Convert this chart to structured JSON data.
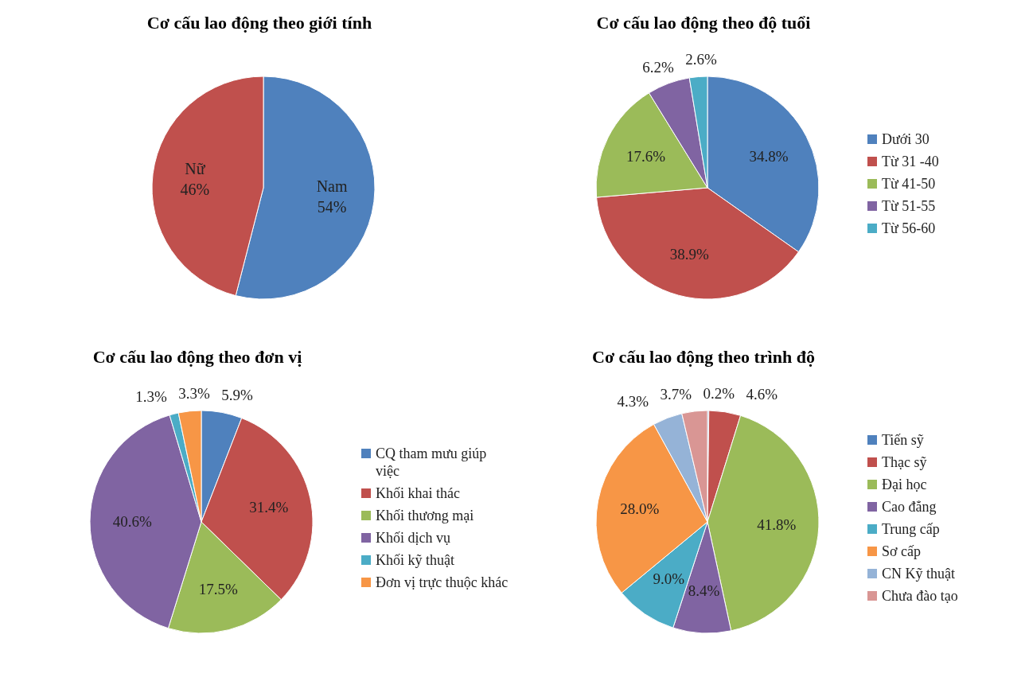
{
  "chart_data": [
    {
      "type": "pie",
      "title": "Cơ cấu lao động theo giới tính",
      "categories": [
        "Nam",
        "Nữ"
      ],
      "values": [
        54,
        46
      ],
      "colors": [
        "#4f81bd",
        "#c0504d"
      ],
      "value_labels": [
        "54%",
        "46%"
      ],
      "legend": false
    },
    {
      "type": "pie",
      "title": "Cơ cấu lao động theo độ tuổi",
      "categories": [
        "Dưới 30",
        "Từ 31 -40",
        "Từ 41-50",
        "Từ 51-55",
        "Từ 56-60"
      ],
      "values": [
        34.8,
        38.9,
        17.6,
        6.2,
        2.6
      ],
      "colors": [
        "#4f81bd",
        "#c0504d",
        "#9bbb59",
        "#8064a2",
        "#4bacc6"
      ],
      "value_labels": [
        "34.8%",
        "38.9%",
        "17.6%",
        "6.2%",
        "2.6%"
      ],
      "legend": "right"
    },
    {
      "type": "pie",
      "title": "Cơ cấu lao động theo đơn vị",
      "categories": [
        "CQ tham mưu giúp việc",
        "Khối khai thác",
        "Khối thương mại",
        "Khối dịch vụ",
        "Khối kỹ thuật",
        "Đơn vị trực thuộc khác"
      ],
      "values": [
        5.9,
        31.4,
        17.5,
        40.6,
        1.3,
        3.3
      ],
      "colors": [
        "#4f81bd",
        "#c0504d",
        "#9bbb59",
        "#8064a2",
        "#4bacc6",
        "#f79646"
      ],
      "value_labels": [
        "5.9%",
        "31.4%",
        "17.5%",
        "40.6%",
        "1.3%",
        "3.3%"
      ],
      "legend": "right"
    },
    {
      "type": "pie",
      "title": "Cơ cấu lao động theo trình độ",
      "categories": [
        "Tiến sỹ",
        "Thạc sỹ",
        "Đại học",
        "Cao đẳng",
        "Trung cấp",
        "Sơ cấp",
        "CN Kỹ thuật",
        "Chưa đào tạo"
      ],
      "values": [
        0.2,
        4.6,
        41.8,
        8.4,
        9.0,
        28.0,
        4.3,
        3.7
      ],
      "colors": [
        "#4f81bd",
        "#c0504d",
        "#9bbb59",
        "#8064a2",
        "#4bacc6",
        "#f79646",
        "#95b3d7",
        "#d99694"
      ],
      "value_labels": [
        "0.2%",
        "4.6%",
        "41.8%",
        "8.4%",
        "9.0%",
        "28.0%",
        "4.3%",
        "3.7%"
      ],
      "legend": "right"
    }
  ]
}
